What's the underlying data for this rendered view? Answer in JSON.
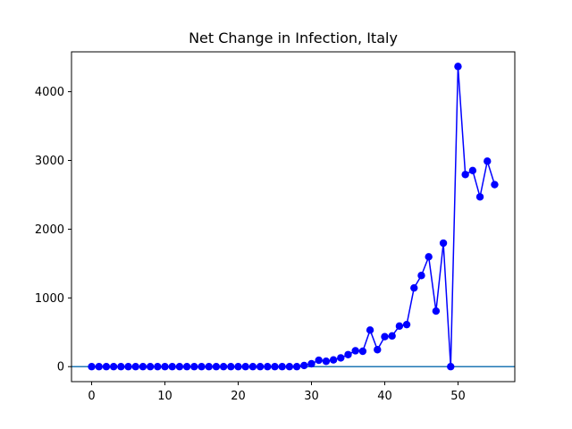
{
  "chart_data": {
    "type": "line",
    "title": "Net Change in Infection, Italy",
    "xlabel": "",
    "ylabel": "",
    "xlim": [
      -2.75,
      57.75
    ],
    "ylim": [
      -218,
      4580
    ],
    "xticks": [
      0,
      10,
      20,
      30,
      40,
      50
    ],
    "yticks": [
      0,
      1000,
      2000,
      3000,
      4000
    ],
    "grid": false,
    "legend": "none",
    "series_color": "#0000ff",
    "baseline_color": "#1f77b4",
    "baseline_y": 0,
    "x": [
      0,
      1,
      2,
      3,
      4,
      5,
      6,
      7,
      8,
      9,
      10,
      11,
      12,
      13,
      14,
      15,
      16,
      17,
      18,
      19,
      20,
      21,
      22,
      23,
      24,
      25,
      26,
      27,
      28,
      29,
      30,
      31,
      32,
      33,
      34,
      35,
      36,
      37,
      38,
      39,
      40,
      41,
      42,
      43,
      44,
      45,
      46,
      47,
      48,
      49,
      50,
      51,
      52,
      53,
      54,
      55
    ],
    "y": [
      0,
      0,
      0,
      0,
      0,
      0,
      0,
      0,
      0,
      0,
      0,
      0,
      0,
      0,
      0,
      0,
      0,
      0,
      0,
      0,
      0,
      0,
      0,
      0,
      0,
      0,
      0,
      0,
      0,
      17,
      42,
      93,
      78,
      98,
      128,
      175,
      231,
      224,
      532,
      247,
      436,
      447,
      590,
      612,
      1145,
      1326,
      1598,
      808,
      1797,
      0,
      4367,
      2795,
      2853,
      2470,
      2989,
      2648
    ]
  }
}
